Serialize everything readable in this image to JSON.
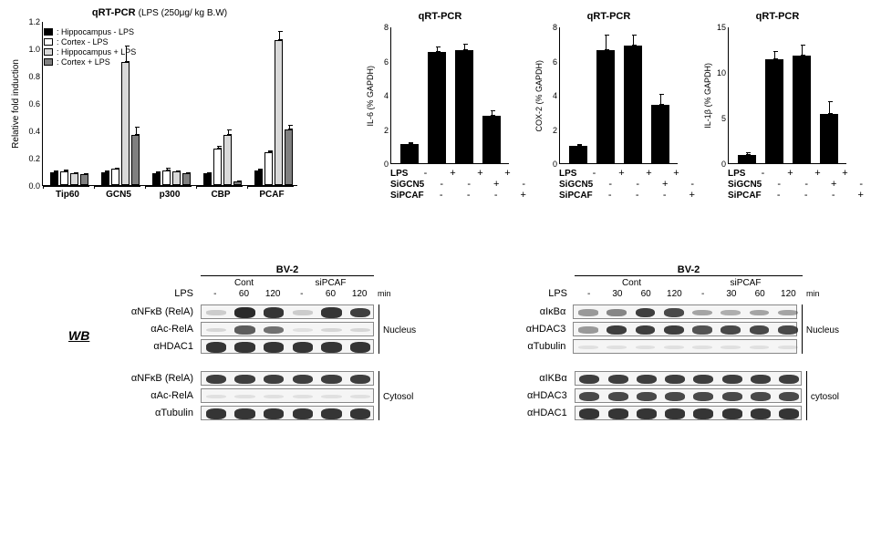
{
  "panelA": {
    "title": "qRT-PCR",
    "title_suffix": "(LPS (250μg/ kg B.W)",
    "ylabel": "Relative fold induction",
    "ylim": [
      0,
      1.2
    ],
    "ytick_step": 0.2,
    "legend": [
      {
        "label": ": Hippocampus - LPS",
        "color": "#000000"
      },
      {
        "label": ": Cortex          - LPS",
        "color": "#ffffff"
      },
      {
        "label": ": Hippocampus + LPS",
        "color": "#d9d9d9"
      },
      {
        "label": ": Cortex          + LPS",
        "color": "#808080"
      }
    ],
    "groups": [
      "Tip60",
      "GCN5",
      "p300",
      "CBP",
      "PCAF"
    ],
    "series_colors": [
      "#000000",
      "#ffffff",
      "#d9d9d9",
      "#808080"
    ],
    "data": {
      "Tip60": {
        "values": [
          0.095,
          0.1,
          0.085,
          0.08
        ],
        "errs": [
          0.01,
          0.015,
          0.01,
          0.008
        ]
      },
      "GCN5": {
        "values": [
          0.095,
          0.12,
          0.9,
          0.37
        ],
        "errs": [
          0.01,
          0.01,
          0.12,
          0.06
        ]
      },
      "p300": {
        "values": [
          0.09,
          0.11,
          0.1,
          0.085
        ],
        "errs": [
          0.01,
          0.015,
          0.01,
          0.008
        ]
      },
      "CBP": {
        "values": [
          0.085,
          0.27,
          0.37,
          0.03
        ],
        "errs": [
          0.008,
          0.02,
          0.04,
          0.005
        ]
      },
      "PCAF": {
        "values": [
          0.11,
          0.24,
          1.06,
          0.41
        ],
        "errs": [
          0.012,
          0.015,
          0.07,
          0.03
        ]
      }
    }
  },
  "panelB": {
    "charts": [
      {
        "title": "qRT-PCR",
        "ylabel": "IL-6 (% GAPDH)",
        "ylim": [
          0,
          8
        ],
        "ytick_step": 2,
        "values": [
          1.1,
          6.5,
          6.6,
          2.8
        ],
        "errs": [
          0.15,
          0.35,
          0.4,
          0.3
        ]
      },
      {
        "title": "qRT-PCR",
        "ylabel": "COX-2 (% GAPDH)",
        "ylim": [
          0,
          8
        ],
        "ytick_step": 2,
        "values": [
          1.0,
          6.6,
          6.9,
          3.4
        ],
        "errs": [
          0.12,
          0.9,
          0.6,
          0.65
        ]
      },
      {
        "title": "qRT-PCR",
        "ylabel": "IL-1β (% GAPDH)",
        "ylim": [
          0,
          15
        ],
        "ytick_step": 5,
        "values": [
          0.9,
          11.4,
          11.8,
          5.4
        ],
        "errs": [
          0.3,
          0.9,
          1.2,
          1.4
        ]
      }
    ],
    "conditions": [
      {
        "label": "LPS",
        "vals": [
          "-",
          "+",
          "+",
          "+"
        ]
      },
      {
        "label": "SiGCN5",
        "vals": [
          "-",
          "-",
          "+",
          "-"
        ]
      },
      {
        "label": "SiPCAF",
        "vals": [
          "-",
          "-",
          "-",
          "+"
        ]
      }
    ],
    "bar_color": "#000000"
  },
  "wb": {
    "tag": "WB",
    "left": {
      "title": "BV-2",
      "group_labels": [
        "Cont",
        "siPCAF"
      ],
      "cond_label": "LPS",
      "time_row": [
        "-",
        "60",
        "120",
        "-",
        "60",
        "120"
      ],
      "time_unit": "min",
      "nucleus": {
        "label": "Nucleus",
        "rows": [
          {
            "name": "αNFκB (RelA)",
            "intens": [
              0.15,
              0.95,
              0.9,
              0.15,
              0.9,
              0.85
            ]
          },
          {
            "name": "αAc-RelA",
            "intens": [
              0.1,
              0.7,
              0.6,
              0.05,
              0.1,
              0.1
            ]
          },
          {
            "name": "αHDAC1",
            "intens": [
              0.9,
              0.9,
              0.9,
              0.9,
              0.9,
              0.9
            ]
          }
        ]
      },
      "cytosol": {
        "label": "Cytosol",
        "rows": [
          {
            "name": "αNFκB (RelA)",
            "intens": [
              0.85,
              0.85,
              0.85,
              0.85,
              0.85,
              0.85
            ]
          },
          {
            "name": "αAc-RelA",
            "intens": [
              0.05,
              0.05,
              0.05,
              0.05,
              0.05,
              0.05
            ]
          },
          {
            "name": "αTubulin",
            "intens": [
              0.9,
              0.9,
              0.9,
              0.9,
              0.9,
              0.9
            ]
          }
        ]
      }
    },
    "right": {
      "title": "BV-2",
      "group_labels": [
        "Cont",
        "siPCAF"
      ],
      "cond_label": "LPS",
      "time_row": [
        "-",
        "30",
        "60",
        "120",
        "-",
        "30",
        "60",
        "120"
      ],
      "time_unit": "min",
      "nucleus": {
        "label": "Nucleus",
        "rows": [
          {
            "name": "αIκBα",
            "intens": [
              0.4,
              0.5,
              0.85,
              0.8,
              0.35,
              0.3,
              0.35,
              0.35
            ]
          },
          {
            "name": "αHDAC3",
            "intens": [
              0.4,
              0.85,
              0.85,
              0.85,
              0.75,
              0.8,
              0.8,
              0.8
            ]
          },
          {
            "name": "αTubulin",
            "intens": [
              0.05,
              0.05,
              0.05,
              0.05,
              0.05,
              0.05,
              0.05,
              0.05
            ]
          }
        ]
      },
      "cytosol": {
        "label": "cytosol",
        "rows": [
          {
            "name": "αIKBα",
            "intens": [
              0.85,
              0.85,
              0.85,
              0.85,
              0.85,
              0.85,
              0.85,
              0.85
            ]
          },
          {
            "name": "αHDAC3",
            "intens": [
              0.8,
              0.8,
              0.8,
              0.8,
              0.8,
              0.8,
              0.8,
              0.8
            ]
          },
          {
            "name": "αHDAC1",
            "intens": [
              0.9,
              0.9,
              0.9,
              0.9,
              0.9,
              0.9,
              0.9,
              0.9
            ]
          }
        ]
      }
    }
  }
}
